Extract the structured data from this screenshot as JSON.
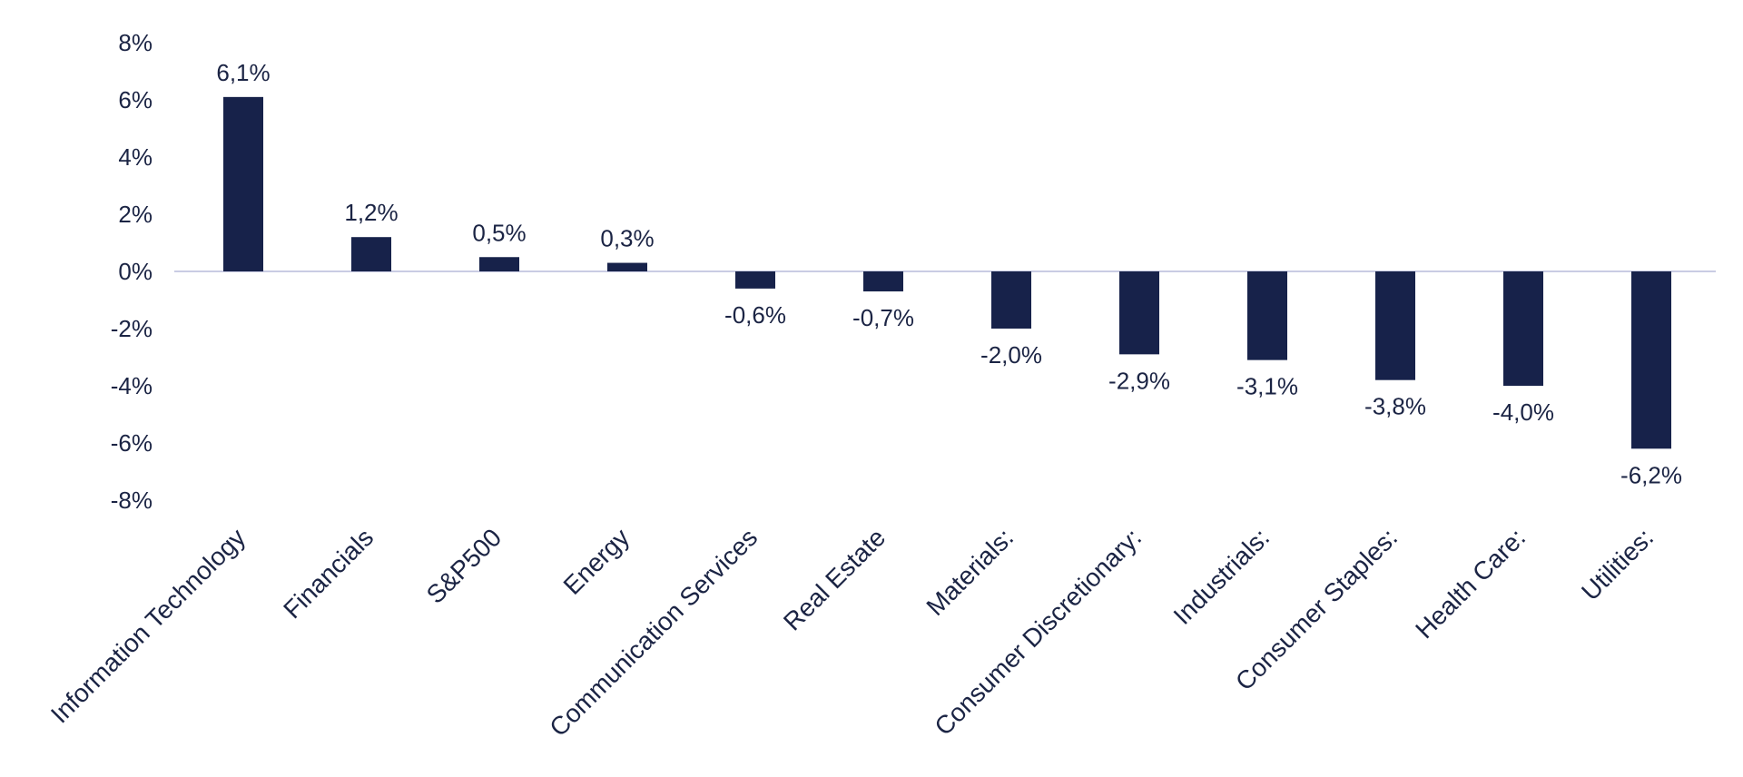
{
  "chart_data": {
    "type": "bar",
    "categories": [
      "Information Technology",
      "Financials",
      "S&P500",
      "Energy",
      "Communication Services",
      "Real Estate",
      "Materials:",
      "Consumer Discretionary:",
      "Industrials:",
      "Consumer Staples:",
      "Health Care:",
      "Utilities:"
    ],
    "values": [
      6.1,
      1.2,
      0.5,
      0.3,
      -0.6,
      -0.7,
      -2.0,
      -2.9,
      -3.1,
      -3.8,
      -4.0,
      -6.2
    ],
    "data_labels": [
      "6,1%",
      "1,2%",
      "0,5%",
      "0,3%",
      "-0,6%",
      "-0,7%",
      "-2,0%",
      "-2,9%",
      "-3,1%",
      "-3,8%",
      "-4,0%",
      "-6,2%"
    ],
    "y_ticks": [
      8,
      6,
      4,
      2,
      0,
      -2,
      -4,
      -6,
      -8
    ],
    "y_tick_labels": [
      "8%",
      "6%",
      "4%",
      "2%",
      "0%",
      "-2%",
      "-4%",
      "-6%",
      "-8%"
    ],
    "ylim": [
      -8,
      8
    ],
    "title": "",
    "xlabel": "",
    "ylabel": "",
    "grid": false,
    "legend": "none",
    "colors": {
      "bar": "#17224a",
      "zero_line": "#c9cce3",
      "text": "#1b2444"
    }
  }
}
